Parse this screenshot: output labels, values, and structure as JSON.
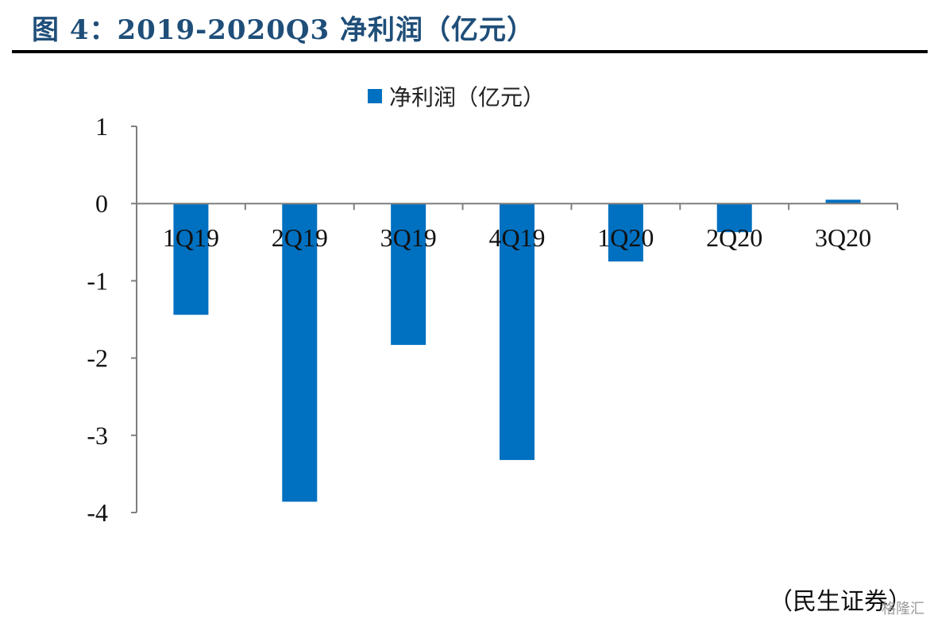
{
  "header": {
    "title": "图 4：2019-2020Q3 净利润（亿元）"
  },
  "footer": {
    "source": "（民生证券）",
    "watermark": "格隆汇"
  },
  "colors": {
    "bar": "#0070c0",
    "title": "#1f4e79",
    "axis": "#7f7f7f"
  },
  "chart_data": {
    "type": "bar",
    "title": "",
    "xlabel": "",
    "ylabel": "",
    "categories": [
      "1Q19",
      "2Q19",
      "3Q19",
      "4Q19",
      "1Q20",
      "2Q20",
      "3Q20"
    ],
    "series": [
      {
        "name": "净利润（亿元）",
        "values": [
          -1.44,
          -3.86,
          -1.83,
          -3.32,
          -0.75,
          -0.37,
          0.05
        ]
      }
    ],
    "ylim": [
      -4,
      1
    ],
    "yticks": [
      1,
      0,
      -1,
      -2,
      -3,
      -4
    ],
    "grid": false,
    "legend": "top-center"
  }
}
